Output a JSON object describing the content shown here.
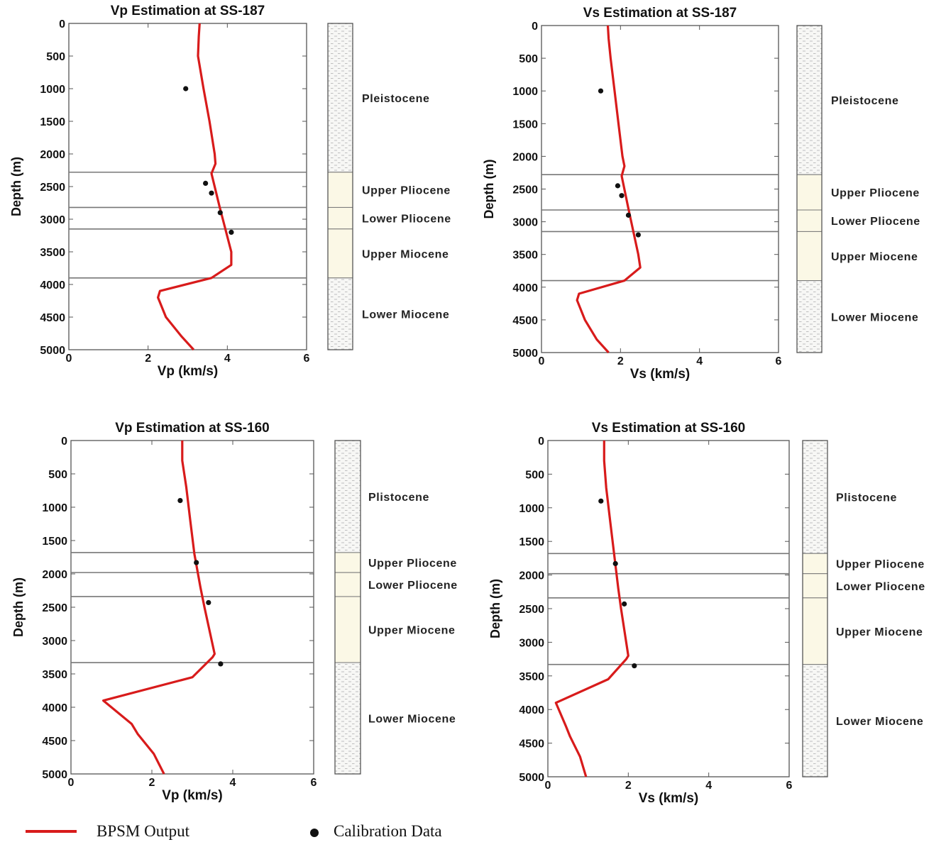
{
  "legend": {
    "model_label": "BPSM Output",
    "calibration_label": "Calibration Data",
    "model_color": "#d81b1b",
    "calibration_color": "#111111"
  },
  "chart_data": [
    {
      "type": "line",
      "title": "Vp Estimation at SS-187",
      "xlabel": "Vp (km/s)",
      "ylabel": "Depth (m)",
      "xlim": [
        0,
        6
      ],
      "ylim": [
        0,
        5000
      ],
      "y_inverted": true,
      "xticks": [
        0,
        2,
        4,
        6
      ],
      "yticks": [
        0,
        500,
        1000,
        1500,
        2000,
        2500,
        3000,
        3500,
        4000,
        4500,
        5000
      ],
      "series": [
        {
          "role": "model",
          "x": [
            3.3,
            3.28,
            3.26,
            3.4,
            3.55,
            3.68,
            3.7,
            3.6,
            3.8,
            4.1,
            4.1,
            3.6,
            2.3,
            2.25,
            2.45,
            2.85,
            3.15
          ],
          "y": [
            0,
            200,
            500,
            1000,
            1500,
            2000,
            2150,
            2300,
            2800,
            3500,
            3700,
            3900,
            4100,
            4200,
            4500,
            4800,
            5000
          ]
        },
        {
          "role": "calibration",
          "x": [
            2.95,
            3.45,
            3.6,
            3.82,
            4.1
          ],
          "y": [
            1000,
            2450,
            2600,
            2900,
            3200
          ]
        }
      ],
      "formations": [
        {
          "name": "Pleistocene",
          "top": 0,
          "base": 2280
        },
        {
          "name": "Upper Pliocene",
          "top": 2280,
          "base": 2820
        },
        {
          "name": "Lower Pliocene",
          "top": 2820,
          "base": 3150
        },
        {
          "name": "Upper Miocene",
          "top": 3150,
          "base": 3900
        },
        {
          "name": "Lower Miocene",
          "top": 3900,
          "base": 5000
        }
      ]
    },
    {
      "type": "line",
      "title": "Vs Estimation at SS-187",
      "xlabel": "Vs (km/s)",
      "ylabel": "Depth (m)",
      "xlim": [
        0,
        6
      ],
      "ylim": [
        0,
        5000
      ],
      "y_inverted": true,
      "xticks": [
        0,
        2,
        4,
        6
      ],
      "yticks": [
        0,
        500,
        1000,
        1500,
        2000,
        2500,
        3000,
        3500,
        4000,
        4500,
        5000
      ],
      "series": [
        {
          "role": "model",
          "x": [
            1.68,
            1.7,
            1.75,
            1.85,
            1.95,
            2.05,
            2.1,
            2.03,
            2.2,
            2.45,
            2.5,
            2.1,
            0.95,
            0.9,
            1.1,
            1.4,
            1.7
          ],
          "y": [
            0,
            200,
            500,
            1000,
            1500,
            2000,
            2150,
            2300,
            2800,
            3500,
            3700,
            3900,
            4100,
            4200,
            4500,
            4800,
            5000
          ]
        },
        {
          "role": "calibration",
          "x": [
            1.5,
            1.93,
            2.03,
            2.2,
            2.45
          ],
          "y": [
            1000,
            2450,
            2600,
            2900,
            3200
          ]
        }
      ],
      "formations": [
        {
          "name": "Pleistocene",
          "top": 0,
          "base": 2280
        },
        {
          "name": "Upper Pliocene",
          "top": 2280,
          "base": 2820
        },
        {
          "name": "Lower Pliocene",
          "top": 2820,
          "base": 3150
        },
        {
          "name": "Upper Miocene",
          "top": 3150,
          "base": 3900
        },
        {
          "name": "Lower Miocene",
          "top": 3900,
          "base": 5000
        }
      ]
    },
    {
      "type": "line",
      "title": "Vp Estimation at SS-160",
      "xlabel": "Vp (km/s)",
      "ylabel": "Depth (m)",
      "xlim": [
        0,
        6
      ],
      "ylim": [
        0,
        5000
      ],
      "y_inverted": true,
      "xticks": [
        0,
        2,
        4,
        6
      ],
      "yticks": [
        0,
        500,
        1000,
        1500,
        2000,
        2500,
        3000,
        3500,
        4000,
        4500,
        5000
      ],
      "series": [
        {
          "role": "model",
          "x": [
            2.75,
            2.75,
            2.85,
            2.95,
            3.05,
            3.2,
            3.3,
            3.55,
            3.5,
            3.0,
            0.8,
            1.5,
            1.65,
            2.05,
            2.3
          ],
          "y": [
            0,
            300,
            700,
            1200,
            1700,
            2200,
            2500,
            3200,
            3250,
            3550,
            3900,
            4250,
            4400,
            4700,
            5000
          ]
        },
        {
          "role": "calibration",
          "x": [
            2.7,
            3.1,
            3.4,
            3.7
          ],
          "y": [
            900,
            1830,
            2430,
            3350
          ]
        }
      ],
      "formations": [
        {
          "name": "Plistocene",
          "top": 0,
          "base": 1680
        },
        {
          "name": "Upper Pliocene",
          "top": 1680,
          "base": 1980
        },
        {
          "name": "Lower Pliocene",
          "top": 1980,
          "base": 2340
        },
        {
          "name": "Upper Miocene",
          "top": 2340,
          "base": 3330
        },
        {
          "name": "Lower Miocene",
          "top": 3330,
          "base": 5000
        }
      ]
    },
    {
      "type": "line",
      "title": "Vs Estimation at SS-160",
      "xlabel": "Vs (km/s)",
      "ylabel": "Depth (m)",
      "xlim": [
        0,
        6
      ],
      "ylim": [
        0,
        5000
      ],
      "y_inverted": true,
      "xticks": [
        0,
        2,
        4,
        6
      ],
      "yticks": [
        0,
        500,
        1000,
        1500,
        2000,
        2500,
        3000,
        3500,
        4000,
        4500,
        5000
      ],
      "series": [
        {
          "role": "model",
          "x": [
            1.4,
            1.4,
            1.45,
            1.55,
            1.65,
            1.75,
            1.82,
            2.0,
            1.95,
            1.5,
            0.2,
            0.45,
            0.55,
            0.8,
            0.95
          ],
          "y": [
            0,
            300,
            700,
            1200,
            1700,
            2200,
            2500,
            3200,
            3250,
            3550,
            3900,
            4250,
            4400,
            4700,
            5000
          ]
        },
        {
          "role": "calibration",
          "x": [
            1.32,
            1.68,
            1.9,
            2.15
          ],
          "y": [
            900,
            1830,
            2430,
            3350
          ]
        }
      ],
      "formations": [
        {
          "name": "Plistocene",
          "top": 0,
          "base": 1680
        },
        {
          "name": "Upper Pliocene",
          "top": 1680,
          "base": 1980
        },
        {
          "name": "Lower Pliocene",
          "top": 1980,
          "base": 2340
        },
        {
          "name": "Upper Miocene",
          "top": 2340,
          "base": 3330
        },
        {
          "name": "Lower Miocene",
          "top": 3330,
          "base": 5000
        }
      ]
    }
  ]
}
